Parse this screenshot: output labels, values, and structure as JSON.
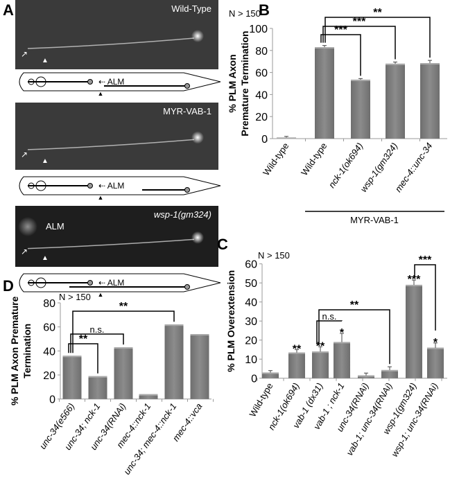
{
  "panel_a": {
    "label": "A",
    "images": [
      {
        "caption": "Wild-Type",
        "italic": false
      },
      {
        "caption": "MYR-VAB-1",
        "italic": false
      },
      {
        "caption": "wsp-1(gm324)",
        "italic": true,
        "inset_label": "ALM"
      }
    ],
    "schematic_label": "ALM"
  },
  "chart_data": [
    {
      "panel": "B",
      "type": "bar",
      "n_label": "N > 150",
      "ylabel": [
        "% PLM Axon",
        "Premature Termination"
      ],
      "ylim": [
        0,
        100
      ],
      "yticks": [
        0,
        20,
        40,
        60,
        80,
        100
      ],
      "categories": [
        "Wild-type",
        "Wild-type",
        "nck-1(ok694)",
        "wsp-1(gm324)",
        "mec-4::unc-34"
      ],
      "values": [
        1,
        83,
        53.5,
        68,
        68.5
      ],
      "errors": [
        1,
        1.5,
        1,
        1.5,
        2.5
      ],
      "group_label": "MYR-VAB-1",
      "brackets": [
        {
          "from": 1,
          "to": 2,
          "label": "***"
        },
        {
          "from": 1,
          "to": 3,
          "label": "***"
        },
        {
          "from": 1,
          "to": 4,
          "label": "**"
        }
      ],
      "bar_stars": []
    },
    {
      "panel": "C",
      "type": "bar",
      "n_label": "N > 150",
      "ylabel": [
        "% PLM Overextension"
      ],
      "ylim": [
        0,
        60
      ],
      "yticks": [
        0,
        10,
        20,
        30,
        40,
        50,
        60
      ],
      "categories": [
        "Wild-type",
        "nck-1(ok694)",
        "vab-1 (dx31)",
        "vab-1 ; nck-1",
        "unc-34(RNAi)",
        "vab-1; unc-34(RNAi)",
        "wsp-1(gm324)",
        "wsp-1; unc-34(RNAi)"
      ],
      "values": [
        3,
        13.5,
        14,
        19,
        1.5,
        4.3,
        49,
        16
      ],
      "errors": [
        1,
        1.5,
        2.5,
        4.5,
        1.2,
        1.7,
        2.5,
        2.5
      ],
      "brackets": [
        {
          "from": 2,
          "to": 3,
          "label": "n.s."
        },
        {
          "from": 2,
          "to": 5,
          "label": "**"
        },
        {
          "from": 6,
          "to": 7,
          "label": "***"
        }
      ],
      "bar_stars": [
        "",
        "**",
        "**",
        "*",
        "",
        "",
        "***",
        "*"
      ]
    },
    {
      "panel": "D",
      "type": "bar",
      "n_label": "N > 150",
      "ylabel": [
        "% PLM Axon Premature",
        "Termination"
      ],
      "ylim": [
        0,
        80
      ],
      "yticks": [
        0,
        20,
        40,
        60,
        80
      ],
      "categories": [
        "unc-34(e566)",
        "unc-34; nck-1",
        "unc-34(RNAi)",
        "mec-4::nck-1",
        "unc-34; mec-4::nck-1",
        "mec-4::vca"
      ],
      "values": [
        36,
        19,
        43,
        4,
        62,
        54
      ],
      "errors": [],
      "brackets": [
        {
          "from": 0,
          "to": 1,
          "label": "**"
        },
        {
          "from": 0,
          "to": 2,
          "label": "n.s."
        },
        {
          "from": 0,
          "to": 4,
          "label": "**"
        }
      ],
      "bar_stars": []
    }
  ],
  "colors": {
    "bar": "#7a7a7a",
    "bar_light": "#9a9a9a",
    "micrograph": "#3a3a3a"
  }
}
